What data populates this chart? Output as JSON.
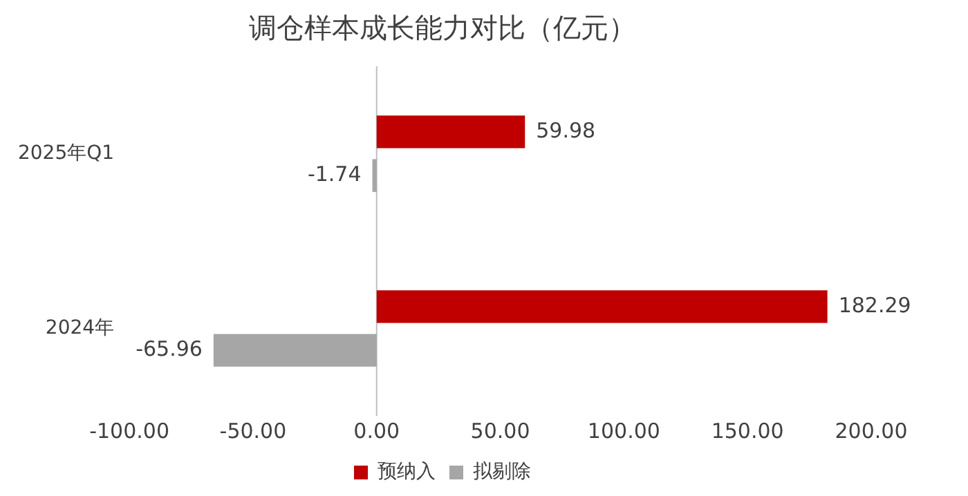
{
  "chart_data": {
    "type": "bar",
    "orientation": "horizontal",
    "title": "调仓样本成长能力对比（亿元）",
    "categories": [
      "2025年Q1",
      "2024年"
    ],
    "series": [
      {
        "name": "预纳入",
        "color": "#c00000",
        "values": [
          59.98,
          182.29
        ]
      },
      {
        "name": "拟剔除",
        "color": "#a6a6a6",
        "values": [
          -1.74,
          -65.96
        ]
      }
    ],
    "xlim": [
      -100,
      200
    ],
    "xticks": [
      {
        "value": -100,
        "label": "-100.00"
      },
      {
        "value": -50,
        "label": "-50.00"
      },
      {
        "value": 0,
        "label": "0.00"
      },
      {
        "value": 50,
        "label": "50.00"
      },
      {
        "value": 100,
        "label": "100.00"
      },
      {
        "value": 150,
        "label": "150.00"
      },
      {
        "value": 200,
        "label": "200.00"
      }
    ],
    "ref_lines": [
      {
        "axis": "x",
        "value": 0,
        "color": "#bfbfbf"
      }
    ],
    "data_labels": true,
    "legend": "bottom",
    "grid": false
  }
}
